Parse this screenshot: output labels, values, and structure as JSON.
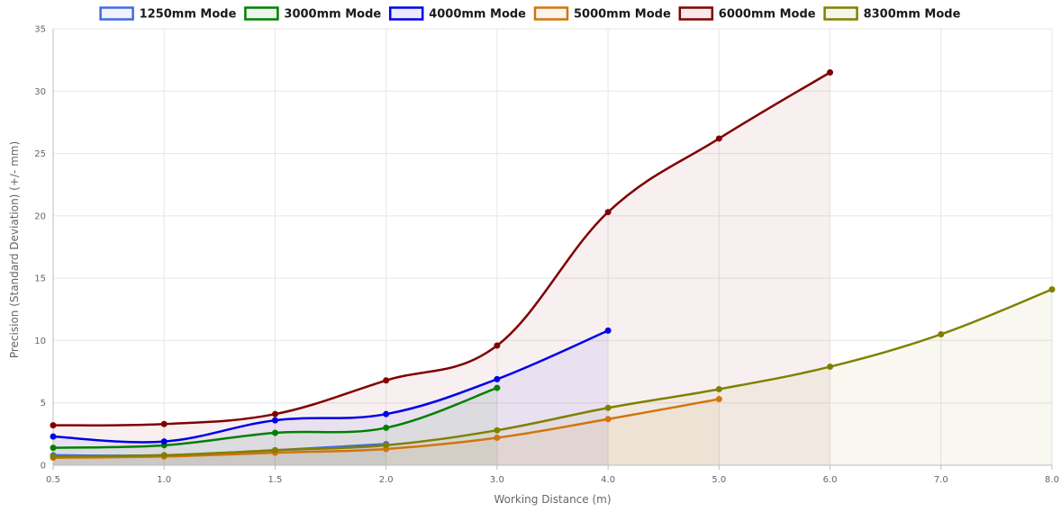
{
  "chart_data": {
    "type": "line",
    "title": "",
    "xlabel": "Working Distance (m)",
    "ylabel": "Precision (Standard Deviation) (+/- mm)",
    "xlim": [
      0.5,
      8.0
    ],
    "ylim": [
      0,
      35
    ],
    "x_ticks": [
      "0.5",
      "1.0",
      "1.5",
      "2.0",
      "3.0",
      "4.0",
      "5.0",
      "6.0",
      "7.0",
      "8.0"
    ],
    "y_ticks": [
      "0",
      "5",
      "10",
      "15",
      "20",
      "25",
      "30",
      "35"
    ],
    "grid": true,
    "legend_position": "top",
    "series": [
      {
        "name": "1250mm Mode",
        "color": "#4169e1",
        "x": [
          "0.5",
          "1.0",
          "1.5",
          "2.0"
        ],
        "values": [
          0.8,
          0.8,
          1.2,
          1.7
        ]
      },
      {
        "name": "3000mm Mode",
        "color": "#008000",
        "x": [
          "0.5",
          "1.0",
          "1.5",
          "2.0",
          "3.0"
        ],
        "values": [
          1.4,
          1.6,
          2.6,
          3.0,
          6.2
        ]
      },
      {
        "name": "4000mm Mode",
        "color": "#0000e6",
        "x": [
          "0.5",
          "1.0",
          "1.5",
          "2.0",
          "3.0",
          "4.0"
        ],
        "values": [
          2.3,
          1.9,
          3.6,
          4.1,
          6.9,
          10.8
        ]
      },
      {
        "name": "5000mm Mode",
        "color": "#d2740a",
        "x": [
          "0.5",
          "1.0",
          "1.5",
          "2.0",
          "3.0",
          "4.0",
          "5.0"
        ],
        "values": [
          0.6,
          0.7,
          1.0,
          1.3,
          2.2,
          3.7,
          5.3
        ]
      },
      {
        "name": "6000mm Mode",
        "color": "#800000",
        "x": [
          "0.5",
          "1.0",
          "1.5",
          "2.0",
          "3.0",
          "4.0",
          "5.0",
          "6.0"
        ],
        "values": [
          3.2,
          3.3,
          4.1,
          6.8,
          9.6,
          20.3,
          26.2,
          31.5
        ]
      },
      {
        "name": "8300mm Mode",
        "color": "#808000",
        "x": [
          "0.5",
          "1.0",
          "1.5",
          "2.0",
          "3.0",
          "4.0",
          "5.0",
          "6.0",
          "7.0",
          "8.0"
        ],
        "values": [
          0.7,
          0.8,
          1.2,
          1.6,
          2.8,
          4.6,
          6.1,
          7.9,
          10.5,
          14.1
        ]
      }
    ]
  }
}
